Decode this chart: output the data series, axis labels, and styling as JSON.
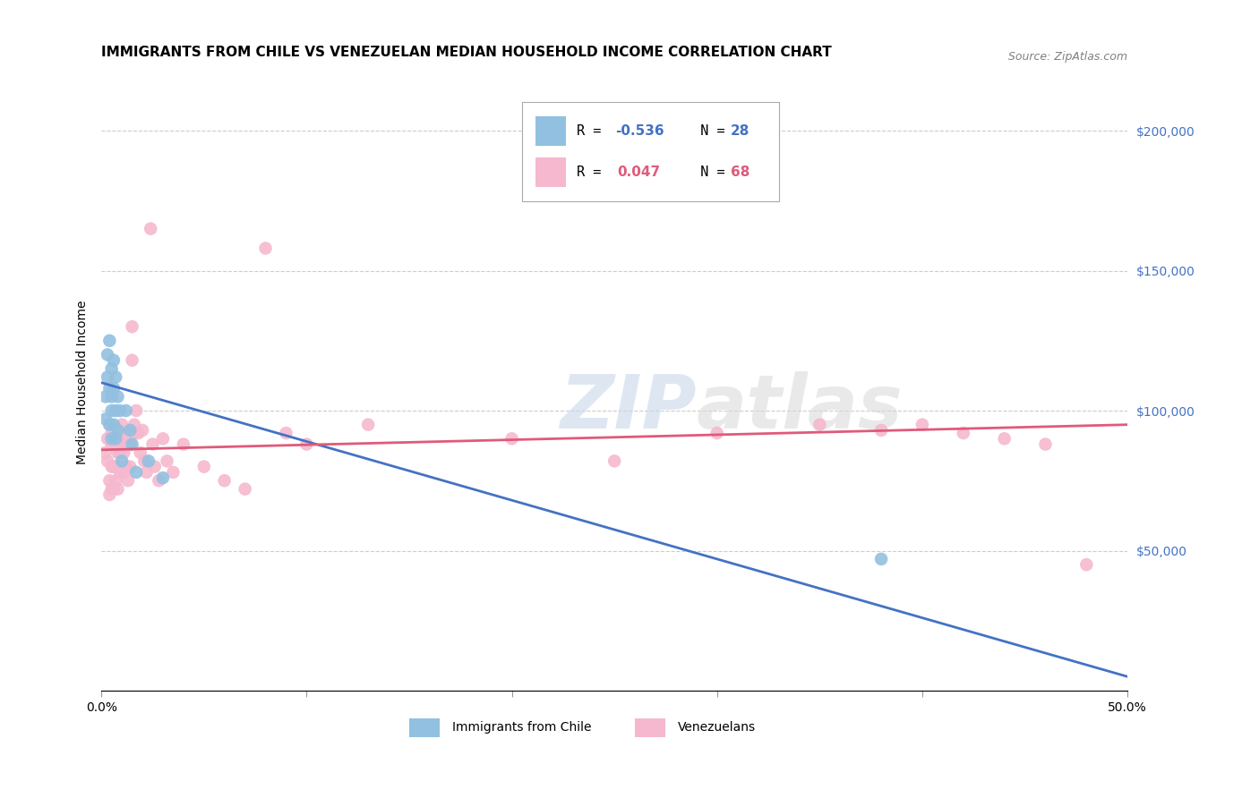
{
  "title": "IMMIGRANTS FROM CHILE VS VENEZUELAN MEDIAN HOUSEHOLD INCOME CORRELATION CHART",
  "source": "Source: ZipAtlas.com",
  "ylabel": "Median Household Income",
  "yticks": [
    0,
    50000,
    100000,
    150000,
    200000
  ],
  "ytick_labels": [
    "",
    "$50,000",
    "$100,000",
    "$150,000",
    "$200,000"
  ],
  "xlim": [
    0.0,
    0.5
  ],
  "ylim": [
    0,
    220000
  ],
  "watermark_zip": "ZIP",
  "watermark_atlas": "atlas",
  "chile_scatter_x": [
    0.002,
    0.002,
    0.003,
    0.003,
    0.004,
    0.004,
    0.004,
    0.005,
    0.005,
    0.005,
    0.005,
    0.006,
    0.006,
    0.006,
    0.007,
    0.007,
    0.007,
    0.008,
    0.008,
    0.009,
    0.01,
    0.012,
    0.014,
    0.015,
    0.017,
    0.023,
    0.03,
    0.38
  ],
  "chile_scatter_y": [
    97000,
    105000,
    112000,
    120000,
    108000,
    125000,
    95000,
    115000,
    105000,
    100000,
    90000,
    118000,
    108000,
    95000,
    112000,
    100000,
    90000,
    105000,
    93000,
    100000,
    82000,
    100000,
    93000,
    88000,
    78000,
    82000,
    76000,
    47000
  ],
  "venezuela_scatter_x": [
    0.002,
    0.003,
    0.003,
    0.004,
    0.004,
    0.004,
    0.005,
    0.005,
    0.005,
    0.005,
    0.006,
    0.006,
    0.006,
    0.007,
    0.007,
    0.007,
    0.008,
    0.008,
    0.008,
    0.008,
    0.009,
    0.009,
    0.009,
    0.01,
    0.01,
    0.011,
    0.011,
    0.012,
    0.012,
    0.013,
    0.013,
    0.014,
    0.014,
    0.015,
    0.015,
    0.016,
    0.016,
    0.017,
    0.018,
    0.019,
    0.02,
    0.021,
    0.022,
    0.024,
    0.025,
    0.026,
    0.028,
    0.03,
    0.032,
    0.035,
    0.04,
    0.05,
    0.06,
    0.07,
    0.08,
    0.09,
    0.1,
    0.13,
    0.2,
    0.25,
    0.3,
    0.35,
    0.38,
    0.4,
    0.42,
    0.44,
    0.46,
    0.48
  ],
  "venezuela_scatter_y": [
    85000,
    82000,
    90000,
    95000,
    75000,
    70000,
    88000,
    80000,
    92000,
    72000,
    90000,
    80000,
    72000,
    88000,
    80000,
    75000,
    90000,
    85000,
    80000,
    72000,
    92000,
    85000,
    78000,
    95000,
    88000,
    85000,
    78000,
    92000,
    80000,
    88000,
    75000,
    88000,
    80000,
    130000,
    118000,
    92000,
    95000,
    100000,
    92000,
    85000,
    93000,
    82000,
    78000,
    165000,
    88000,
    80000,
    75000,
    90000,
    82000,
    78000,
    88000,
    80000,
    75000,
    72000,
    158000,
    92000,
    88000,
    95000,
    90000,
    82000,
    92000,
    95000,
    93000,
    95000,
    92000,
    90000,
    88000,
    45000
  ],
  "chile_line_x": [
    0.0,
    0.5
  ],
  "chile_line_y": [
    110000,
    5000
  ],
  "venezuela_line_x": [
    0.0,
    0.5
  ],
  "venezuela_line_y": [
    86000,
    95000
  ],
  "chile_color": "#92c0e0",
  "venezuela_color": "#f5b8ce",
  "chile_line_color": "#4472C4",
  "venezuela_line_color": "#E05A7A",
  "background_color": "#ffffff",
  "grid_color": "#cccccc",
  "title_fontsize": 11,
  "axis_label_fontsize": 10,
  "tick_fontsize": 10,
  "legend_r1": "R = -0.536",
  "legend_n1": "N = 28",
  "legend_r2": "R =  0.047",
  "legend_n2": "N = 68",
  "r1_color": "#4472C4",
  "n1_color": "#4472C4",
  "r2_color": "#E05A7A",
  "n2_color": "#E05A7A",
  "bottom_legend_chile": "Immigrants from Chile",
  "bottom_legend_venez": "Venezuelans"
}
